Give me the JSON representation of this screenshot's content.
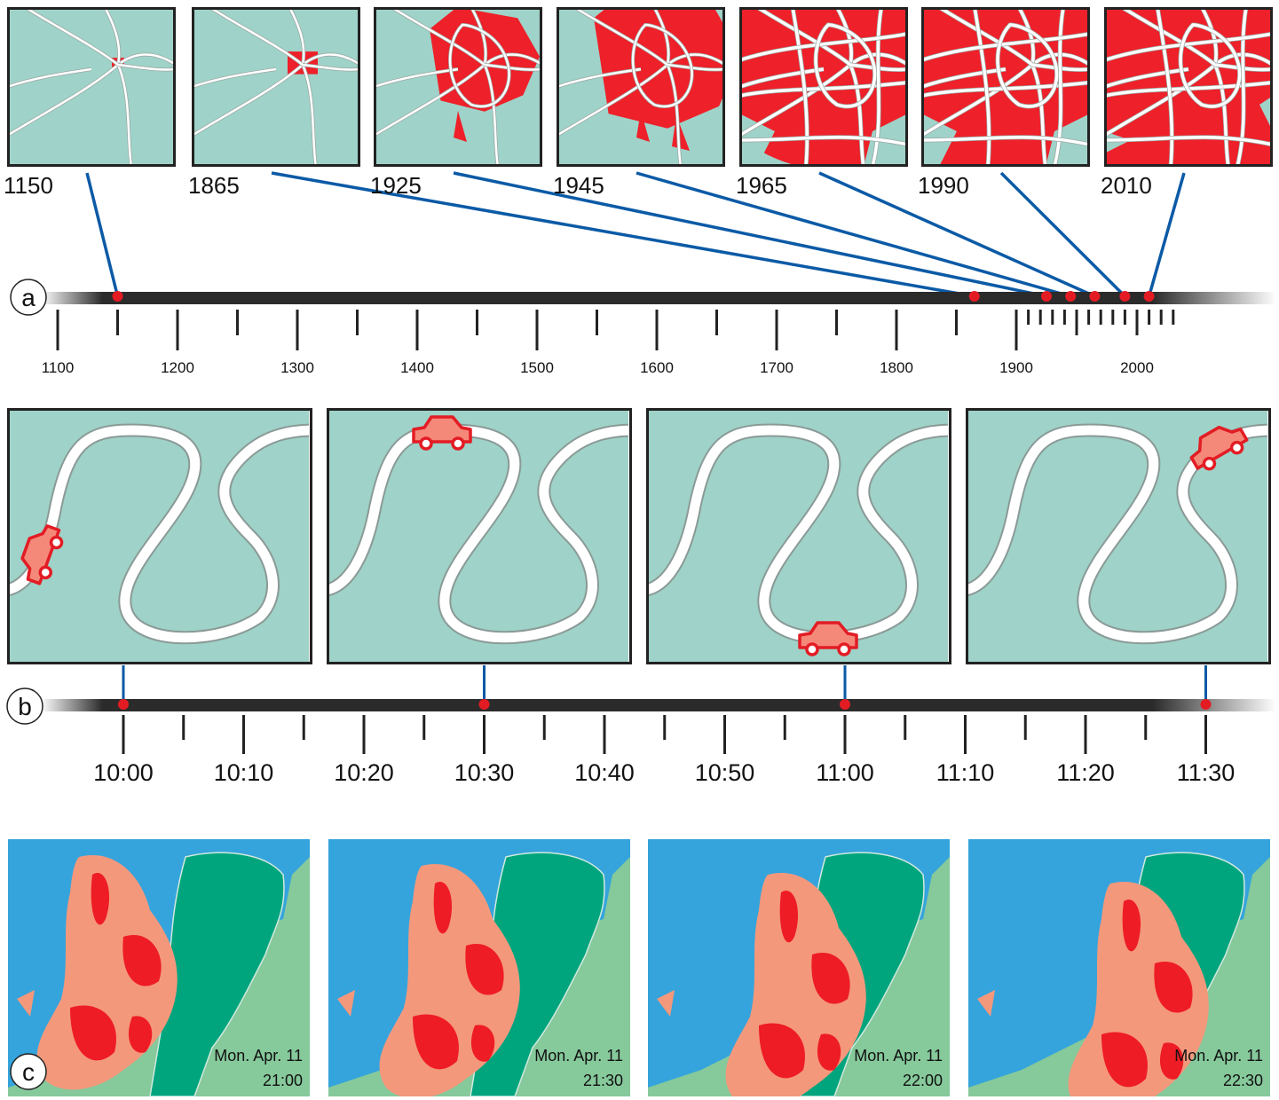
{
  "colors": {
    "map_bg": "#9fd2c8",
    "urban_red": "#ee2029",
    "road": "#ffffff",
    "connector_blue": "#0b5aa6",
    "marker_red": "#e31c24",
    "axis_dark": "#2b2b2b",
    "sea": "#35a4dc",
    "land_green": "#86c99b",
    "dark_green": "#00a57e",
    "rain_light": "#f4987c",
    "rain_heavy": "#ee1c25"
  },
  "panels": {
    "a": {
      "label": "a",
      "snapshots": [
        {
          "year": "1150",
          "value": 1150,
          "coverage": 0.01
        },
        {
          "year": "1865",
          "value": 1865,
          "coverage": 0.06
        },
        {
          "year": "1925",
          "value": 1925,
          "coverage": 0.28
        },
        {
          "year": "1945",
          "value": 1945,
          "coverage": 0.42
        },
        {
          "year": "1965",
          "value": 1965,
          "coverage": 0.6
        },
        {
          "year": "1990",
          "value": 1990,
          "coverage": 0.85
        },
        {
          "year": "2010",
          "value": 2010,
          "coverage": 0.94
        }
      ],
      "axis": {
        "min": 1100,
        "max": 2050,
        "tick_labels": [
          "1100",
          "1200",
          "1300",
          "1400",
          "1500",
          "1600",
          "1700",
          "1800",
          "1900",
          "2000"
        ],
        "tick_values": [
          1100,
          1200,
          1300,
          1400,
          1500,
          1600,
          1700,
          1800,
          1900,
          2000
        ]
      }
    },
    "b": {
      "label": "b",
      "snapshots": [
        {
          "time": "10:00",
          "route_progress": 0.08
        },
        {
          "time": "10:30",
          "route_progress": 0.26
        },
        {
          "time": "11:00",
          "route_progress": 0.55
        },
        {
          "time": "11:30",
          "route_progress": 0.92
        }
      ],
      "axis": {
        "tick_labels": [
          "10:00",
          "10:10",
          "10:20",
          "10:30",
          "10:40",
          "10:50",
          "11:00",
          "11:10",
          "11:20",
          "11:30"
        ]
      }
    },
    "c": {
      "label": "c",
      "frames": [
        {
          "date": "Mon. Apr. 11",
          "time": "21:00"
        },
        {
          "date": "Mon. Apr. 11",
          "time": "21:30"
        },
        {
          "date": "Mon. Apr. 11",
          "time": "22:00"
        },
        {
          "date": "Mon. Apr. 11",
          "time": "22:30"
        }
      ]
    }
  }
}
